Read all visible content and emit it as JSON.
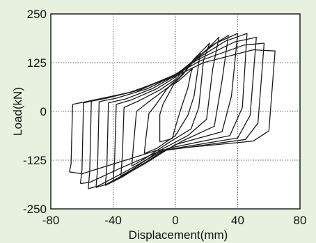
{
  "chart_data": {
    "type": "line",
    "title": "",
    "xlabel": "Displacement(mm)",
    "ylabel": "Load(kN)",
    "xlim": [
      -80,
      80
    ],
    "ylim": [
      -250,
      250
    ],
    "x_ticks": [
      "-80",
      "-40",
      "0",
      "40",
      "80"
    ],
    "y_ticks": [
      "250",
      "125",
      "0",
      "-125",
      "-250"
    ],
    "grid": true,
    "legend": "none",
    "line_color": "#1a1a1a",
    "series": [
      {
        "values": [
          [
            -10,
            -78
          ],
          [
            -2,
            -70
          ],
          [
            0,
            -40
          ],
          [
            3,
            0
          ],
          [
            8,
            60
          ],
          [
            10,
            100
          ],
          [
            11,
            110
          ],
          [
            6,
            92
          ],
          [
            2,
            78
          ],
          [
            -1,
            70
          ],
          [
            -3,
            55
          ],
          [
            -8,
            18
          ],
          [
            -10,
            -8
          ],
          [
            -10,
            -60
          ],
          [
            -10,
            -78
          ]
        ]
      },
      {
        "values": [
          [
            -20,
            -108
          ],
          [
            -12,
            -95
          ],
          [
            0,
            -62
          ],
          [
            8,
            -10
          ],
          [
            12,
            40
          ],
          [
            15,
            125
          ],
          [
            16,
            150
          ],
          [
            9,
            115
          ],
          [
            2,
            85
          ],
          [
            -2,
            72
          ],
          [
            -6,
            55
          ],
          [
            -12,
            20
          ],
          [
            -17,
            -5
          ],
          [
            -19,
            -70
          ],
          [
            -20,
            -108
          ]
        ]
      },
      {
        "values": [
          [
            -28,
            -140
          ],
          [
            -20,
            -122
          ],
          [
            -5,
            -82
          ],
          [
            10,
            -45
          ],
          [
            15,
            10
          ],
          [
            18,
            130
          ],
          [
            22,
            175
          ],
          [
            12,
            135
          ],
          [
            5,
            95
          ],
          [
            0,
            75
          ],
          [
            -8,
            52
          ],
          [
            -18,
            22
          ],
          [
            -25,
            0
          ],
          [
            -27,
            -90
          ],
          [
            -28,
            -140
          ]
        ]
      },
      {
        "values": [
          [
            -35,
            -165
          ],
          [
            -28,
            -150
          ],
          [
            -10,
            -100
          ],
          [
            8,
            -62
          ],
          [
            20,
            -20
          ],
          [
            24,
            110
          ],
          [
            28,
            190
          ],
          [
            18,
            150
          ],
          [
            6,
            108
          ],
          [
            0,
            82
          ],
          [
            -10,
            55
          ],
          [
            -24,
            26
          ],
          [
            -33,
            10
          ],
          [
            -34,
            -110
          ],
          [
            -35,
            -165
          ]
        ]
      },
      {
        "values": [
          [
            -40,
            -180
          ],
          [
            -34,
            -168
          ],
          [
            -15,
            -120
          ],
          [
            5,
            -75
          ],
          [
            25,
            -38
          ],
          [
            30,
            80
          ],
          [
            34,
            195
          ],
          [
            22,
            165
          ],
          [
            8,
            118
          ],
          [
            0,
            88
          ],
          [
            -12,
            58
          ],
          [
            -28,
            30
          ],
          [
            -38,
            18
          ],
          [
            -39,
            -125
          ],
          [
            -40,
            -180
          ]
        ]
      },
      {
        "values": [
          [
            -45,
            -190
          ],
          [
            -40,
            -180
          ],
          [
            -20,
            -135
          ],
          [
            0,
            -85
          ],
          [
            30,
            -52
          ],
          [
            36,
            40
          ],
          [
            40,
            200
          ],
          [
            26,
            175
          ],
          [
            10,
            125
          ],
          [
            0,
            92
          ],
          [
            -15,
            58
          ],
          [
            -32,
            32
          ],
          [
            -43,
            22
          ],
          [
            -44,
            -140
          ],
          [
            -45,
            -190
          ]
        ]
      },
      {
        "values": [
          [
            -51,
            -195
          ],
          [
            -45,
            -188
          ],
          [
            -25,
            -145
          ],
          [
            -5,
            -95
          ],
          [
            35,
            -62
          ],
          [
            43,
            10
          ],
          [
            46,
            200
          ],
          [
            32,
            180
          ],
          [
            12,
            130
          ],
          [
            0,
            94
          ],
          [
            -18,
            58
          ],
          [
            -38,
            34
          ],
          [
            -49,
            25
          ],
          [
            -50,
            -150
          ],
          [
            -51,
            -195
          ]
        ]
      },
      {
        "values": [
          [
            -56,
            -198
          ],
          [
            -50,
            -192
          ],
          [
            -30,
            -150
          ],
          [
            -8,
            -100
          ],
          [
            40,
            -68
          ],
          [
            48,
            -10
          ],
          [
            52,
            190
          ],
          [
            38,
            178
          ],
          [
            14,
            132
          ],
          [
            0,
            95
          ],
          [
            -22,
            56
          ],
          [
            -44,
            34
          ],
          [
            -54,
            26
          ],
          [
            -55,
            -155
          ],
          [
            -56,
            -198
          ]
        ]
      },
      {
        "values": [
          [
            -61,
            -185
          ],
          [
            -55,
            -182
          ],
          [
            -35,
            -145
          ],
          [
            -10,
            -102
          ],
          [
            45,
            -72
          ],
          [
            53,
            -30
          ],
          [
            57,
            175
          ],
          [
            44,
            170
          ],
          [
            16,
            130
          ],
          [
            0,
            94
          ],
          [
            -26,
            52
          ],
          [
            -50,
            30
          ],
          [
            -59,
            22
          ],
          [
            -60,
            -150
          ],
          [
            -61,
            -185
          ]
        ]
      },
      {
        "values": [
          [
            -68,
            -155
          ],
          [
            -60,
            -160
          ],
          [
            -40,
            -135
          ],
          [
            -12,
            -100
          ],
          [
            50,
            -76
          ],
          [
            60,
            -50
          ],
          [
            64,
            155
          ],
          [
            50,
            158
          ],
          [
            18,
            125
          ],
          [
            0,
            90
          ],
          [
            -30,
            48
          ],
          [
            -56,
            26
          ],
          [
            -66,
            18
          ],
          [
            -67,
            -135
          ],
          [
            -68,
            -155
          ]
        ]
      }
    ]
  }
}
